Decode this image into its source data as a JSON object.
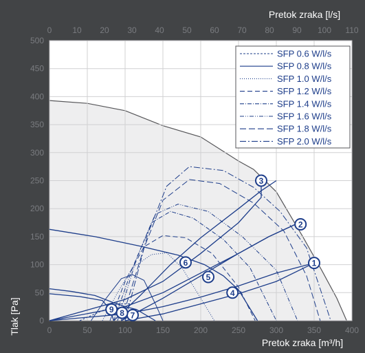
{
  "chart_data": {
    "type": "line",
    "title": "",
    "xlabel_bottom": "Pretok zraka [m³/h]",
    "xlabel_top": "Pretok zraka [l/s]",
    "ylabel": "Tlak [Pa]",
    "xlim": [
      0,
      400
    ],
    "ylim": [
      0,
      500
    ],
    "x2lim": [
      0,
      110
    ],
    "x_ticks": [
      0,
      50,
      100,
      150,
      200,
      250,
      300,
      350,
      400
    ],
    "x_tick_labels": [
      "0",
      "50",
      "100",
      "150",
      "200",
      "250",
      "300",
      "350",
      "400"
    ],
    "x2_ticks": [
      0,
      10,
      20,
      30,
      40,
      50,
      60,
      70,
      80,
      90,
      100,
      110
    ],
    "x2_tick_labels": [
      "0",
      "10",
      "20",
      "30",
      "40",
      "50",
      "60",
      "70",
      "80",
      "90",
      "100",
      "110"
    ],
    "y_ticks": [
      0,
      50,
      100,
      150,
      200,
      250,
      300,
      350,
      400,
      450,
      500
    ],
    "y_tick_labels": [
      "0",
      "50",
      "100",
      "150",
      "200",
      "250",
      "300",
      "350",
      "400",
      "450",
      "500"
    ],
    "grid": true,
    "legend_position": "top-right",
    "colors": {
      "background": "#424446",
      "plot_area": "#ffffff",
      "envelope_fill": "#eeeeef",
      "grid": "#d0d0d2",
      "curves": "#1d3d8a",
      "tick_text": "#7a7c80",
      "label_text": "#ffffff"
    },
    "envelope": {
      "points": [
        [
          0,
          393
        ],
        [
          50,
          388
        ],
        [
          100,
          375
        ],
        [
          150,
          348
        ],
        [
          200,
          328
        ],
        [
          250,
          285
        ],
        [
          270,
          270
        ],
        [
          300,
          230
        ],
        [
          335,
          150
        ],
        [
          360,
          90
        ],
        [
          380,
          40
        ],
        [
          393,
          0
        ]
      ]
    },
    "sfp_series": [
      {
        "name": "SFP 0.6 W/l/s",
        "dash": "3,2",
        "points": [
          [
            40,
            0
          ],
          [
            90,
            30
          ],
          [
            110,
            30
          ]
        ]
      },
      {
        "name": "SFP 0.8 W/l/s",
        "dash": "",
        "points": [
          [
            55,
            0
          ],
          [
            75,
            40
          ],
          [
            95,
            75
          ],
          [
            110,
            82
          ],
          [
            125,
            72
          ],
          [
            140,
            30
          ],
          [
            150,
            0
          ]
        ]
      },
      {
        "name": "SFP 1.0 W/l/s",
        "dash": "1,2",
        "points": [
          [
            70,
            0
          ],
          [
            90,
            50
          ],
          [
            110,
            95
          ],
          [
            135,
            118
          ],
          [
            155,
            121
          ],
          [
            175,
            95
          ],
          [
            200,
            40
          ],
          [
            218,
            0
          ]
        ]
      },
      {
        "name": "SFP 1.2 W/l/s",
        "dash": "7,4",
        "points": [
          [
            80,
            0
          ],
          [
            100,
            70
          ],
          [
            125,
            132
          ],
          [
            150,
            152
          ],
          [
            180,
            148
          ],
          [
            215,
            120
          ],
          [
            250,
            60
          ],
          [
            272,
            0
          ]
        ]
      },
      {
        "name": "SFP 1.4 W/l/s",
        "dash": "6,2,1,2",
        "points": [
          [
            85,
            0
          ],
          [
            110,
            95
          ],
          [
            135,
            175
          ],
          [
            160,
            195
          ],
          [
            190,
            183
          ],
          [
            230,
            145
          ],
          [
            265,
            95
          ],
          [
            300,
            0
          ]
        ]
      },
      {
        "name": "SFP 1.6 W/l/s",
        "dash": "6,2,1,2,1,2",
        "points": [
          [
            90,
            0
          ],
          [
            115,
            110
          ],
          [
            140,
            190
          ],
          [
            170,
            208
          ],
          [
            210,
            195
          ],
          [
            255,
            150
          ],
          [
            300,
            90
          ],
          [
            328,
            0
          ]
        ]
      },
      {
        "name": "SFP 1.8 W/l/s",
        "dash": "9,4",
        "points": [
          [
            95,
            0
          ],
          [
            125,
            130
          ],
          [
            150,
            215
          ],
          [
            185,
            252
          ],
          [
            225,
            245
          ],
          [
            270,
            210
          ],
          [
            310,
            160
          ],
          [
            340,
            80
          ],
          [
            358,
            0
          ]
        ]
      },
      {
        "name": "SFP 2.0 W/l/s",
        "dash": "9,3,2,3",
        "points": [
          [
            100,
            0
          ],
          [
            130,
            155
          ],
          [
            155,
            240
          ],
          [
            185,
            275
          ],
          [
            230,
            268
          ],
          [
            270,
            238
          ],
          [
            305,
            195
          ],
          [
            340,
            130
          ],
          [
            372,
            0
          ]
        ]
      }
    ],
    "fan_curves": [
      {
        "points": [
          [
            0,
            163
          ],
          [
            60,
            150
          ],
          [
            120,
            133
          ],
          [
            170,
            117
          ],
          [
            205,
            100
          ],
          [
            230,
            80
          ],
          [
            250,
            55
          ],
          [
            275,
            0
          ]
        ]
      },
      {
        "points": [
          [
            0,
            57
          ],
          [
            30,
            52
          ],
          [
            60,
            45
          ],
          [
            85,
            32
          ],
          [
            100,
            25
          ],
          [
            115,
            20
          ],
          [
            140,
            0
          ]
        ]
      },
      {
        "points": [
          [
            0,
            48
          ],
          [
            40,
            43
          ],
          [
            70,
            36
          ],
          [
            80,
            20
          ],
          [
            85,
            0
          ]
        ]
      },
      {
        "points": [
          [
            100,
            0
          ],
          [
            150,
            12
          ],
          [
            200,
            30
          ],
          [
            250,
            48
          ],
          [
            300,
            70
          ],
          [
            350,
            103
          ]
        ]
      },
      {
        "points": [
          [
            95,
            0
          ],
          [
            150,
            40
          ],
          [
            200,
            80
          ],
          [
            250,
            120
          ],
          [
            290,
            150
          ],
          [
            335,
            178
          ]
        ]
      },
      {
        "points": [
          [
            85,
            0
          ],
          [
            120,
            45
          ],
          [
            160,
            100
          ],
          [
            200,
            148
          ],
          [
            250,
            200
          ],
          [
            280,
            232
          ],
          [
            300,
            250
          ]
        ]
      }
    ],
    "system_curves": [
      {
        "points": [
          [
            0,
            0
          ],
          [
            100,
            12
          ],
          [
            150,
            25
          ],
          [
            200,
            42
          ],
          [
            250,
            62
          ],
          [
            300,
            85
          ],
          [
            350,
            103
          ]
        ]
      },
      {
        "points": [
          [
            0,
            0
          ],
          [
            100,
            25
          ],
          [
            150,
            50
          ],
          [
            200,
            85
          ],
          [
            250,
            120
          ],
          [
            290,
            150
          ],
          [
            330,
            175
          ]
        ]
      },
      {
        "points": [
          [
            0,
            0
          ],
          [
            100,
            38
          ],
          [
            150,
            70
          ],
          [
            200,
            120
          ],
          [
            250,
            175
          ],
          [
            280,
            220
          ],
          [
            280,
            250
          ]
        ]
      }
    ],
    "markers": [
      {
        "label": "1",
        "x": 350,
        "y": 103
      },
      {
        "label": "2",
        "x": 332,
        "y": 172
      },
      {
        "label": "3",
        "x": 280,
        "y": 250
      },
      {
        "label": "4",
        "x": 242,
        "y": 50
      },
      {
        "label": "5",
        "x": 210,
        "y": 78
      },
      {
        "label": "6",
        "x": 180,
        "y": 104
      },
      {
        "label": "7",
        "x": 110,
        "y": 10
      },
      {
        "label": "8",
        "x": 96,
        "y": 14
      },
      {
        "label": "9",
        "x": 82,
        "y": 20
      }
    ]
  }
}
